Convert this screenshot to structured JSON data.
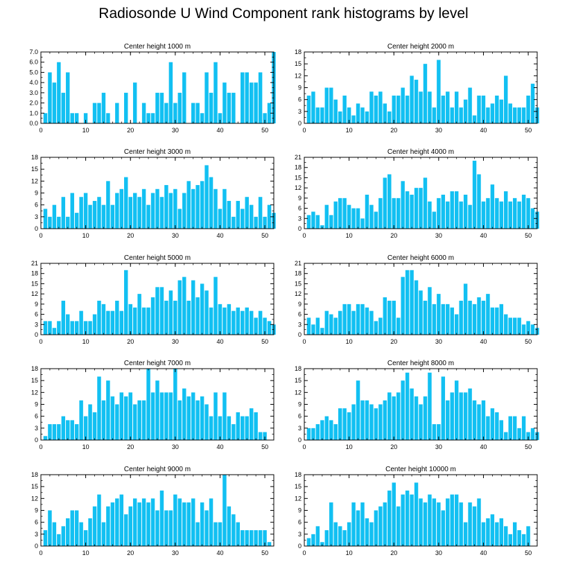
{
  "title": "Radiosonde U Wind Component rank histograms by level",
  "colors": {
    "bar": "#12c0f2",
    "bar_edge": "#ffffff",
    "axis": "#000000",
    "background": "#ffffff"
  },
  "chart_data": [
    {
      "type": "bar",
      "title": "Center height 1000 m",
      "xlim": [
        0,
        52
      ],
      "ylim": [
        0,
        7
      ],
      "xticks": [
        0,
        10,
        20,
        30,
        40,
        50
      ],
      "yticks": [
        0,
        1,
        2,
        3,
        4,
        5,
        6,
        7
      ],
      "ytick_labels": [
        "0.0",
        "1.0",
        "2.0",
        "3.0",
        "4.0",
        "5.0",
        "6.0",
        "7.0"
      ],
      "values": [
        1,
        5,
        4,
        6,
        3,
        5,
        1,
        1,
        0,
        1,
        0,
        2,
        2,
        3,
        1,
        0,
        2,
        0,
        3,
        0,
        4,
        0,
        2,
        1,
        1,
        3,
        3,
        2,
        6,
        2,
        3,
        5,
        0,
        2,
        2,
        1,
        5,
        3,
        6,
        1,
        4,
        3,
        3,
        0,
        5,
        5,
        4,
        4,
        5,
        1,
        2,
        7
      ]
    },
    {
      "type": "bar",
      "title": "Center height 2000 m",
      "xlim": [
        0,
        52
      ],
      "ylim": [
        0,
        18
      ],
      "xticks": [
        0,
        10,
        20,
        30,
        40,
        50
      ],
      "yticks": [
        0,
        3,
        6,
        9,
        12,
        15,
        18
      ],
      "ytick_labels": [
        "0",
        "3",
        "6",
        "9",
        "12",
        "15",
        "18"
      ],
      "values": [
        7,
        8,
        4,
        4,
        9,
        9,
        6,
        3,
        7,
        4,
        2,
        5,
        4,
        3,
        8,
        7,
        8,
        5,
        3,
        7,
        7,
        9,
        7,
        12,
        11,
        8,
        15,
        8,
        4,
        16,
        7,
        8,
        4,
        8,
        4,
        6,
        9,
        2,
        7,
        7,
        4,
        5,
        7,
        6,
        12,
        5,
        4,
        4,
        4,
        7,
        10,
        4
      ]
    },
    {
      "type": "bar",
      "title": "Center height 3000 m",
      "xlim": [
        0,
        52
      ],
      "ylim": [
        0,
        18
      ],
      "xticks": [
        0,
        10,
        20,
        30,
        40,
        50
      ],
      "yticks": [
        0,
        3,
        6,
        9,
        12,
        15,
        18
      ],
      "ytick_labels": [
        "0",
        "3",
        "6",
        "9",
        "12",
        "15",
        "18"
      ],
      "values": [
        5,
        3,
        6,
        3,
        8,
        3,
        9,
        4,
        8,
        9,
        6,
        7,
        8,
        6,
        12,
        6,
        9,
        10,
        13,
        8,
        9,
        8,
        10,
        6,
        9,
        10,
        8,
        11,
        9,
        10,
        5,
        9,
        12,
        10,
        11,
        12,
        16,
        13,
        10,
        5,
        10,
        7,
        3,
        7,
        5,
        8,
        6,
        3,
        8,
        3,
        6,
        4
      ]
    },
    {
      "type": "bar",
      "title": "Center height 4000 m",
      "xlim": [
        0,
        52
      ],
      "ylim": [
        0,
        21
      ],
      "xticks": [
        0,
        10,
        20,
        30,
        40,
        50
      ],
      "yticks": [
        0,
        3,
        6,
        9,
        12,
        15,
        18,
        21
      ],
      "ytick_labels": [
        "0",
        "3",
        "6",
        "9",
        "12",
        "15",
        "18",
        "21"
      ],
      "values": [
        4,
        5,
        4,
        1,
        7,
        4,
        8,
        9,
        9,
        7,
        6,
        6,
        3,
        10,
        7,
        5,
        9,
        15,
        16,
        9,
        9,
        14,
        11,
        10,
        12,
        12,
        15,
        8,
        5,
        9,
        10,
        8,
        11,
        11,
        8,
        10,
        7,
        20,
        16,
        8,
        9,
        13,
        9,
        8,
        11,
        8,
        9,
        8,
        10,
        9,
        6,
        5
      ]
    },
    {
      "type": "bar",
      "title": "Center height 5000 m",
      "xlim": [
        0,
        52
      ],
      "ylim": [
        0,
        21
      ],
      "xticks": [
        0,
        10,
        20,
        30,
        40,
        50
      ],
      "yticks": [
        0,
        3,
        6,
        9,
        12,
        15,
        18,
        21
      ],
      "ytick_labels": [
        "0",
        "3",
        "6",
        "9",
        "12",
        "15",
        "18",
        "21"
      ],
      "values": [
        4,
        4,
        2,
        4,
        10,
        6,
        4,
        4,
        7,
        4,
        4,
        6,
        10,
        9,
        7,
        7,
        10,
        7,
        19,
        9,
        8,
        12,
        8,
        8,
        11,
        14,
        14,
        10,
        13,
        10,
        16,
        17,
        10,
        16,
        11,
        15,
        13,
        8,
        17,
        9,
        8,
        9,
        7,
        8,
        7,
        8,
        7,
        5,
        7,
        5,
        4,
        3
      ]
    },
    {
      "type": "bar",
      "title": "Center height 6000 m",
      "xlim": [
        0,
        52
      ],
      "ylim": [
        0,
        21
      ],
      "xticks": [
        0,
        10,
        20,
        30,
        40,
        50
      ],
      "yticks": [
        0,
        3,
        6,
        9,
        12,
        15,
        18,
        21
      ],
      "ytick_labels": [
        "0",
        "3",
        "6",
        "9",
        "12",
        "15",
        "18",
        "21"
      ],
      "values": [
        5,
        3,
        5,
        2,
        7,
        6,
        5,
        7,
        9,
        9,
        7,
        9,
        9,
        8,
        7,
        4,
        5,
        11,
        10,
        10,
        5,
        17,
        19,
        19,
        16,
        13,
        10,
        14,
        9,
        12,
        9,
        9,
        8,
        6,
        10,
        15,
        10,
        9,
        11,
        10,
        12,
        8,
        8,
        9,
        6,
        5,
        5,
        5,
        3,
        4,
        3,
        2
      ]
    },
    {
      "type": "bar",
      "title": "Center height 7000 m",
      "xlim": [
        0,
        52
      ],
      "ylim": [
        0,
        18
      ],
      "xticks": [
        0,
        10,
        20,
        30,
        40,
        50
      ],
      "yticks": [
        0,
        3,
        6,
        9,
        12,
        15,
        18
      ],
      "ytick_labels": [
        "0",
        "3",
        "6",
        "9",
        "12",
        "15",
        "18"
      ],
      "values": [
        1,
        4,
        4,
        4,
        6,
        5,
        5,
        4,
        10,
        6,
        9,
        7,
        16,
        10,
        15,
        11,
        9,
        12,
        11,
        12,
        9,
        10,
        10,
        18,
        12,
        15,
        12,
        12,
        12,
        18,
        10,
        13,
        11,
        12,
        10,
        11,
        9,
        6,
        12,
        6,
        12,
        6,
        4,
        7,
        6,
        6,
        8,
        7,
        2,
        2
      ]
    },
    {
      "type": "bar",
      "title": "Center height 8000 m",
      "xlim": [
        0,
        52
      ],
      "ylim": [
        0,
        18
      ],
      "xticks": [
        0,
        10,
        20,
        30,
        40,
        50
      ],
      "yticks": [
        0,
        3,
        6,
        9,
        12,
        15,
        18
      ],
      "ytick_labels": [
        "0",
        "3",
        "6",
        "9",
        "12",
        "15",
        "18"
      ],
      "values": [
        3,
        3,
        4,
        5,
        6,
        5,
        4,
        8,
        8,
        7,
        9,
        15,
        10,
        10,
        9,
        8,
        9,
        10,
        12,
        11,
        12,
        15,
        17,
        13,
        11,
        9,
        11,
        17,
        4,
        4,
        16,
        10,
        12,
        15,
        12,
        12,
        13,
        10,
        9,
        10,
        6,
        8,
        7,
        5,
        2,
        6,
        6,
        3,
        6,
        2,
        3,
        2
      ]
    },
    {
      "type": "bar",
      "title": "Center height 9000 m",
      "xlim": [
        0,
        52
      ],
      "ylim": [
        0,
        18
      ],
      "xticks": [
        0,
        10,
        20,
        30,
        40,
        50
      ],
      "yticks": [
        0,
        3,
        6,
        9,
        12,
        15,
        18
      ],
      "ytick_labels": [
        "0",
        "3",
        "6",
        "9",
        "12",
        "15",
        "18"
      ],
      "values": [
        4,
        9,
        6,
        3,
        5,
        7,
        9,
        9,
        6,
        4,
        7,
        10,
        13,
        6,
        10,
        11,
        12,
        13,
        8,
        10,
        12,
        11,
        12,
        11,
        12,
        9,
        14,
        9,
        9,
        13,
        12,
        11,
        11,
        12,
        6,
        11,
        9,
        12,
        6,
        6,
        18,
        10,
        8,
        6,
        4,
        4,
        4,
        4,
        4,
        4,
        1
      ]
    },
    {
      "type": "bar",
      "title": "Center height 10000 m",
      "xlim": [
        0,
        52
      ],
      "ylim": [
        0,
        18
      ],
      "xticks": [
        0,
        10,
        20,
        30,
        40,
        50
      ],
      "yticks": [
        0,
        3,
        6,
        9,
        12,
        15,
        18
      ],
      "ytick_labels": [
        "0",
        "3",
        "6",
        "9",
        "12",
        "15",
        "18"
      ],
      "values": [
        2,
        3,
        5,
        1,
        4,
        11,
        6,
        5,
        4,
        6,
        11,
        9,
        11,
        7,
        6,
        9,
        10,
        11,
        14,
        16,
        10,
        13,
        14,
        13,
        16,
        12,
        11,
        13,
        12,
        11,
        9,
        12,
        13,
        13,
        11,
        6,
        11,
        10,
        12,
        6,
        7,
        8,
        6,
        7,
        5,
        3,
        6,
        4,
        3,
        5
      ]
    }
  ]
}
